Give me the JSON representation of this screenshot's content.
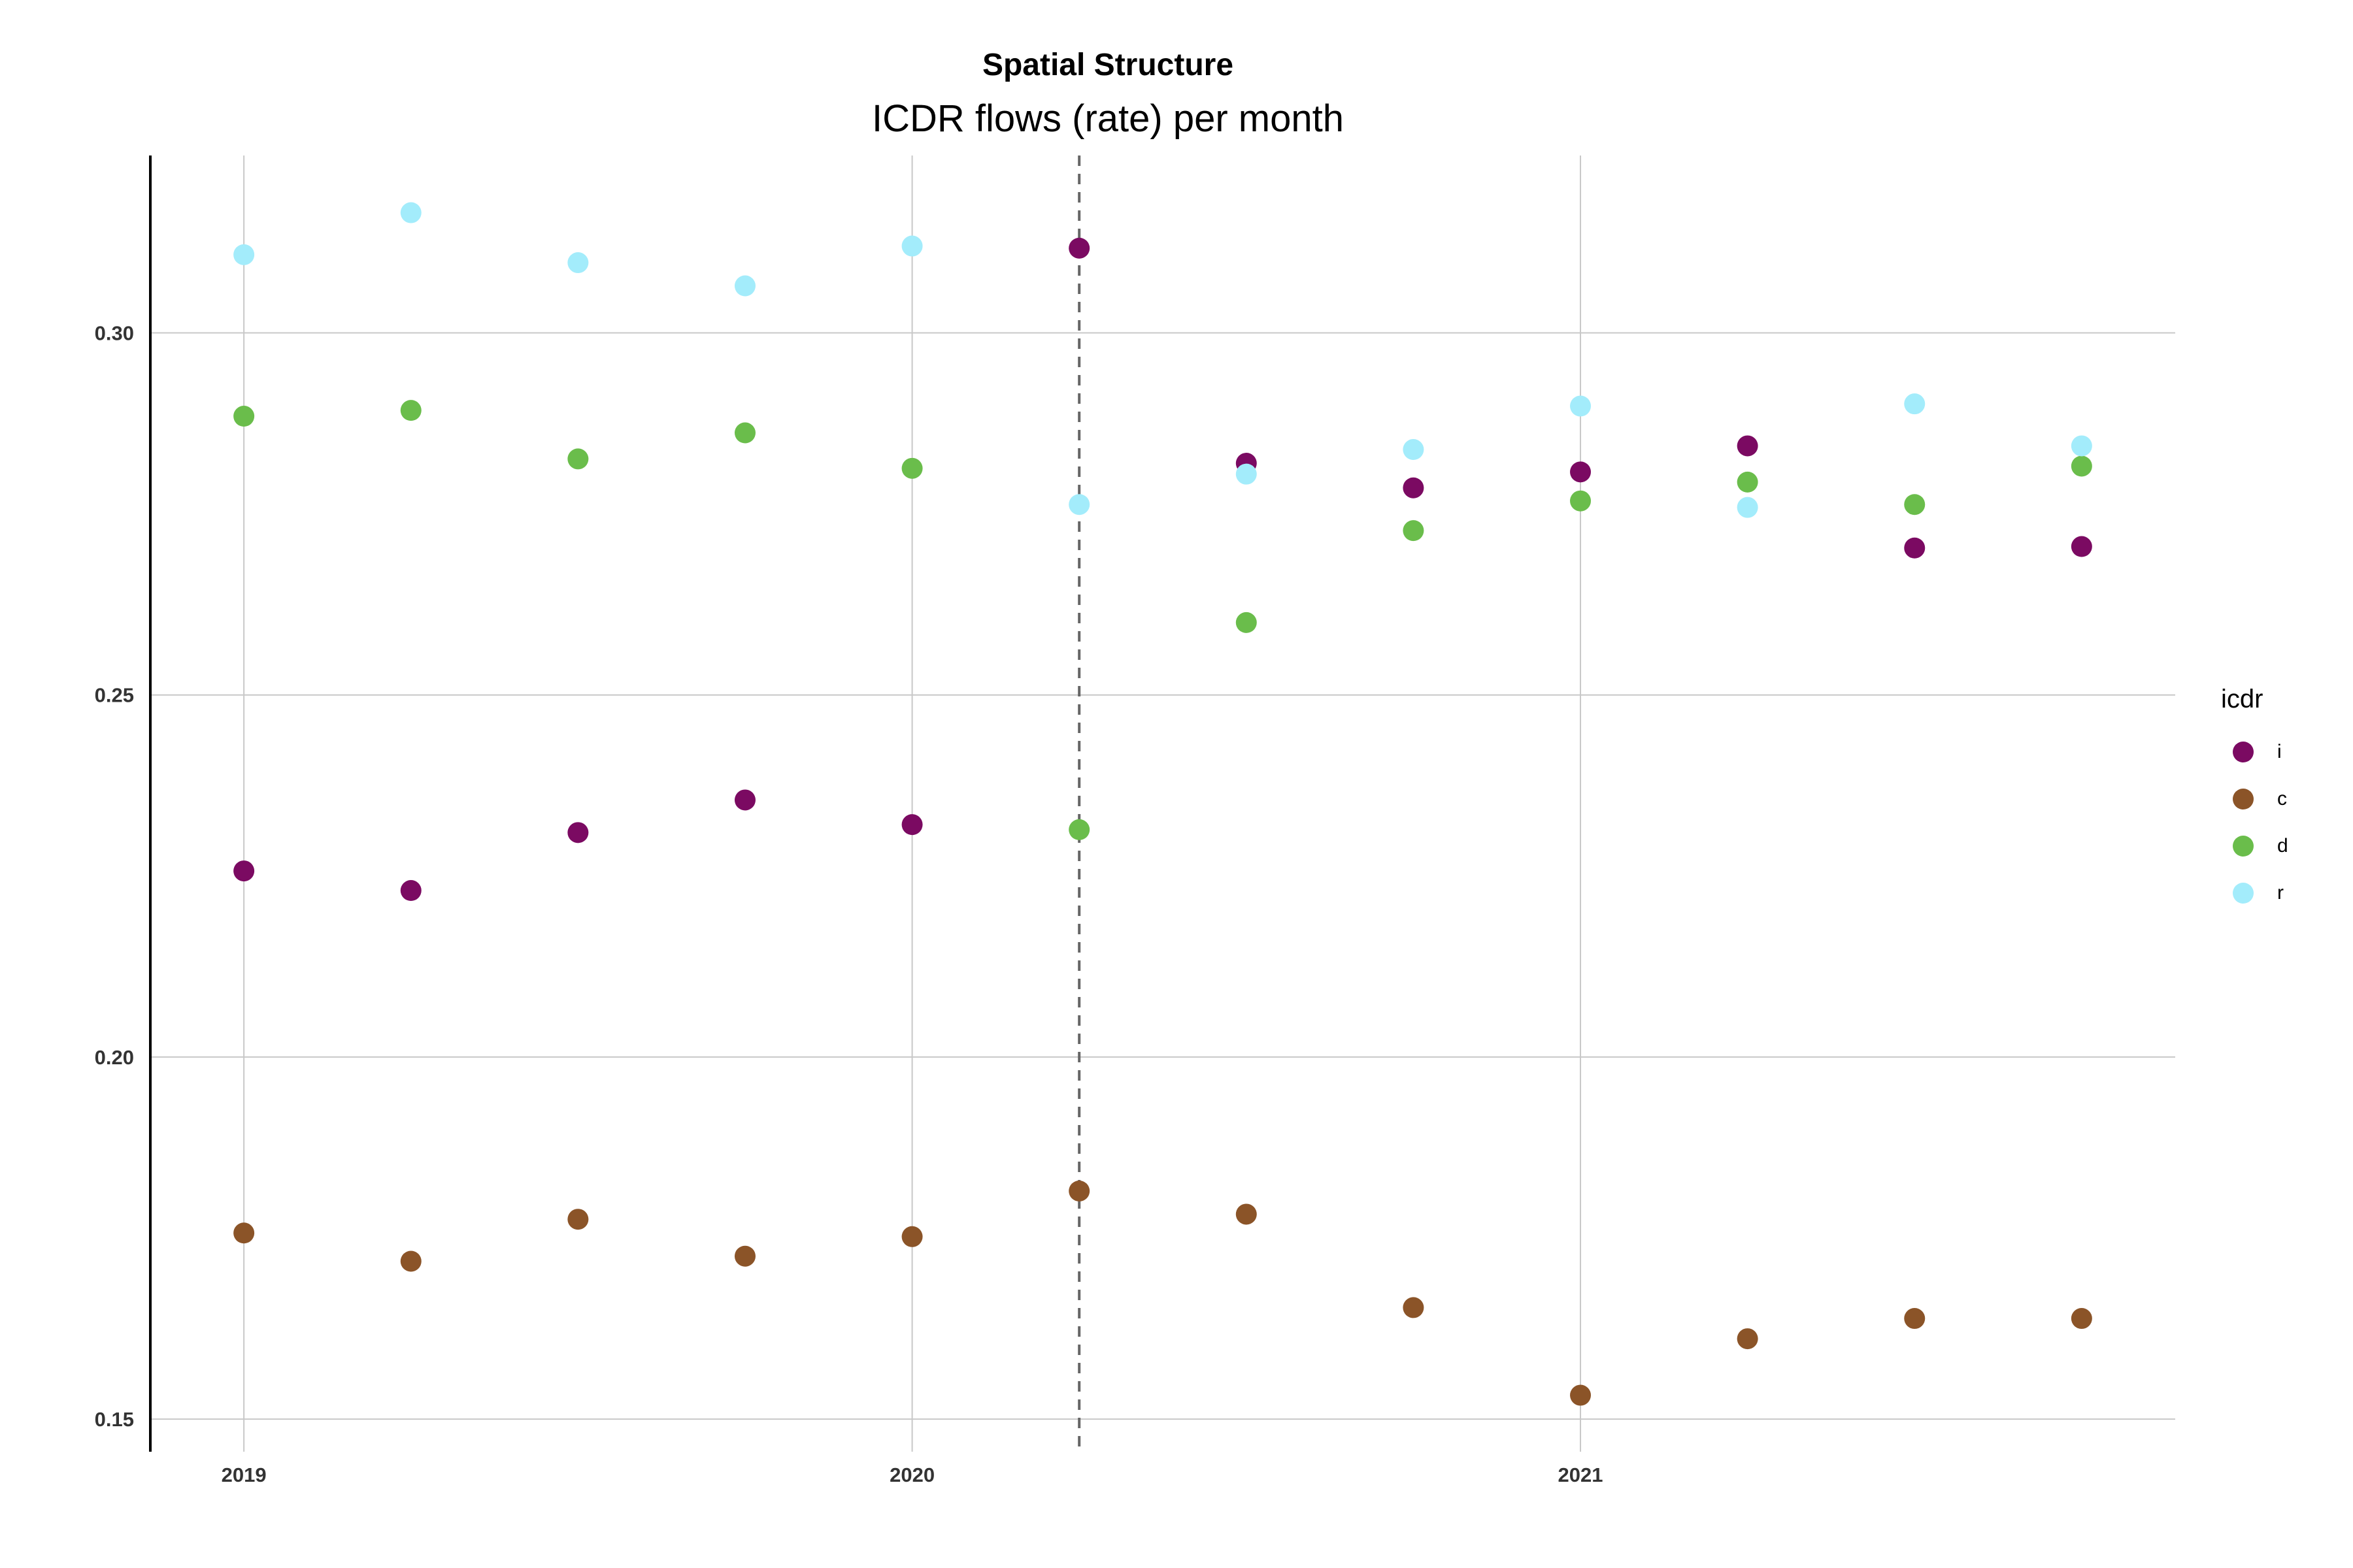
{
  "chart_data": {
    "type": "scatter",
    "title": "Spatial Structure",
    "subtitle": "ICDR flows (rate) per month",
    "xlabel": "",
    "ylabel": "",
    "x_ticks": [
      {
        "value": 2019.0,
        "label": "2019"
      },
      {
        "value": 2020.0,
        "label": "2020"
      },
      {
        "value": 2021.0,
        "label": "2021"
      }
    ],
    "y_ticks": [
      {
        "value": 0.15,
        "label": "0.15"
      },
      {
        "value": 0.2,
        "label": "0.20"
      },
      {
        "value": 0.25,
        "label": "0.25"
      },
      {
        "value": 0.3,
        "label": "0.30"
      }
    ],
    "xlim": [
      2018.86,
      2021.89
    ],
    "ylim": [
      0.1455,
      0.3245
    ],
    "vline_x": 2020.25,
    "grid": true,
    "legend": {
      "title": "icdr",
      "position": "right"
    },
    "x": [
      2019.0,
      2019.25,
      2019.5,
      2019.75,
      2020.0,
      2020.25,
      2020.5,
      2020.75,
      2021.0,
      2021.25,
      2021.5,
      2021.75
    ],
    "series": [
      {
        "name": "i",
        "color": "#7b0a62",
        "values": [
          0.2257,
          0.223,
          0.231,
          0.2355,
          0.2321,
          0.3117,
          0.282,
          0.2786,
          0.2808,
          0.2844,
          0.2703,
          0.2705
        ]
      },
      {
        "name": "c",
        "color": "#8b5428",
        "values": [
          0.1757,
          0.1718,
          0.1776,
          0.1725,
          0.1752,
          0.1815,
          0.1783,
          0.1654,
          0.1533,
          0.1611,
          0.1639,
          0.1639
        ]
      },
      {
        "name": "d",
        "color": "#6abd4b",
        "values": [
          0.2885,
          0.2893,
          0.2826,
          0.2862,
          0.2813,
          0.2314,
          0.26,
          0.2727,
          0.2768,
          0.2794,
          0.2763,
          0.2816
        ]
      },
      {
        "name": "r",
        "color": "#a3ecfb",
        "values": [
          0.3108,
          0.3166,
          0.3097,
          0.3065,
          0.312,
          0.2763,
          0.2805,
          0.2839,
          0.2899,
          0.2759,
          0.2902,
          0.2844
        ]
      }
    ]
  }
}
